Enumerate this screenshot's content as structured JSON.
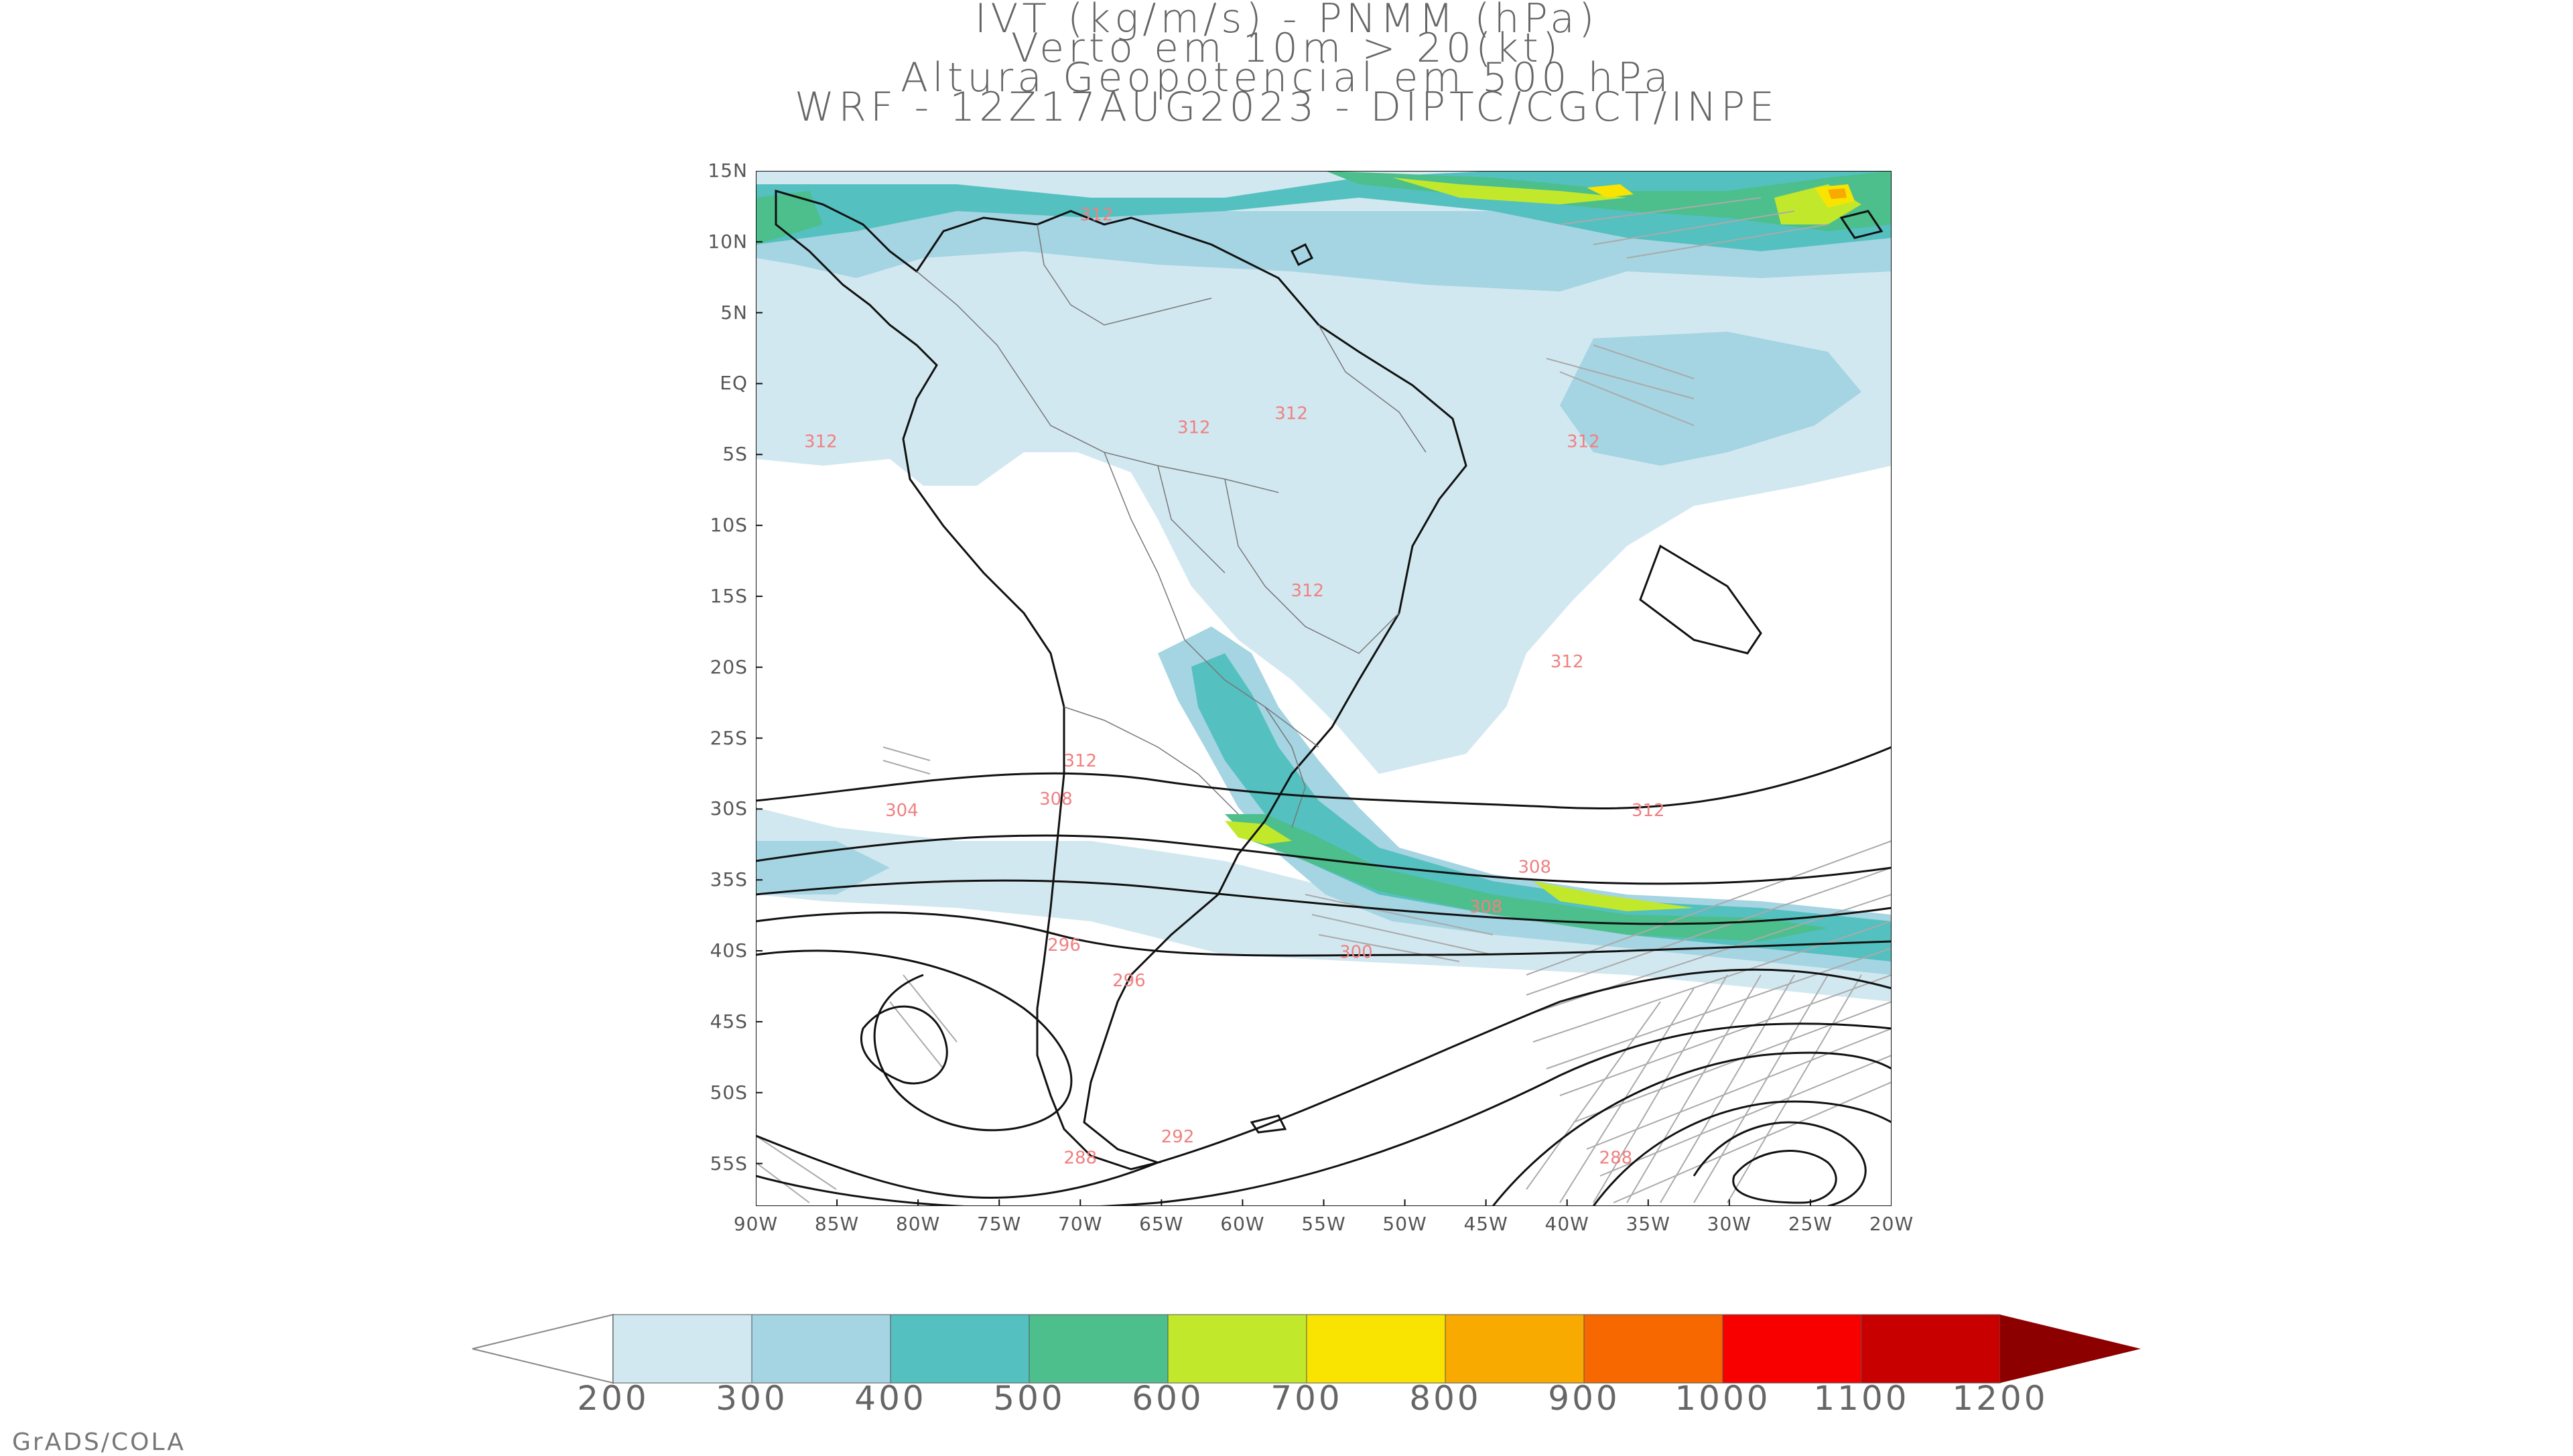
{
  "title": {
    "line1": "IVT (kg/m/s) - PNMM (hPa)",
    "line2": "Verto em 10m > 20(kt)",
    "line3": "Altura Geopotencial em 500 hPa",
    "line4": "WRF - 12Z17AUG2023 - DIPTC/CGCT/INPE"
  },
  "axes": {
    "lat_labels": [
      "15N",
      "10N",
      "5N",
      "EQ",
      "5S",
      "10S",
      "15S",
      "20S",
      "25S",
      "30S",
      "35S",
      "40S",
      "45S",
      "50S",
      "55S"
    ],
    "lon_labels": [
      "90W",
      "85W",
      "80W",
      "75W",
      "70W",
      "65W",
      "60W",
      "55W",
      "50W",
      "45W",
      "40W",
      "35W",
      "30W",
      "25W",
      "20W"
    ],
    "lat_range": [
      15,
      -58
    ],
    "lon_range": [
      -90,
      -20
    ]
  },
  "colorbar": {
    "labels": [
      "200",
      "300",
      "400",
      "500",
      "600",
      "700",
      "800",
      "900",
      "1000",
      "1100",
      "1200"
    ],
    "colors": [
      "#d2e8f0",
      "#a5d4e2",
      "#54c0c0",
      "#4cbf8c",
      "#c2e82c",
      "#f8e400",
      "#f8aa00",
      "#f86800",
      "#f80000",
      "#c80000",
      "#8c0000"
    ],
    "below_color": "#ffffff"
  },
  "contour_labels": [
    {
      "text": "312",
      "lat": 11.5,
      "lon": -69
    },
    {
      "text": "312",
      "lat": -3.5,
      "lon": -63
    },
    {
      "text": "312",
      "lat": -2.5,
      "lon": -57
    },
    {
      "text": "312",
      "lat": -4.5,
      "lon": -86
    },
    {
      "text": "312",
      "lat": -4.5,
      "lon": -39
    },
    {
      "text": "312",
      "lat": -15,
      "lon": -56
    },
    {
      "text": "312",
      "lat": -20,
      "lon": -40
    },
    {
      "text": "312",
      "lat": -30.5,
      "lon": -35
    },
    {
      "text": "312",
      "lat": -27,
      "lon": -70
    },
    {
      "text": "304",
      "lat": -30.5,
      "lon": -81
    },
    {
      "text": "308",
      "lat": -29.7,
      "lon": -71.5
    },
    {
      "text": "308",
      "lat": -34.5,
      "lon": -42
    },
    {
      "text": "308",
      "lat": -37.3,
      "lon": -45
    },
    {
      "text": "300",
      "lat": -40.5,
      "lon": -53
    },
    {
      "text": "296",
      "lat": -40,
      "lon": -71
    },
    {
      "text": "296",
      "lat": -42.5,
      "lon": -67
    },
    {
      "text": "292",
      "lat": -53.5,
      "lon": -64
    },
    {
      "text": "288",
      "lat": -55,
      "lon": -70
    },
    {
      "text": "288",
      "lat": -55,
      "lon": -37
    }
  ],
  "credit": "GrADS/COLA"
}
